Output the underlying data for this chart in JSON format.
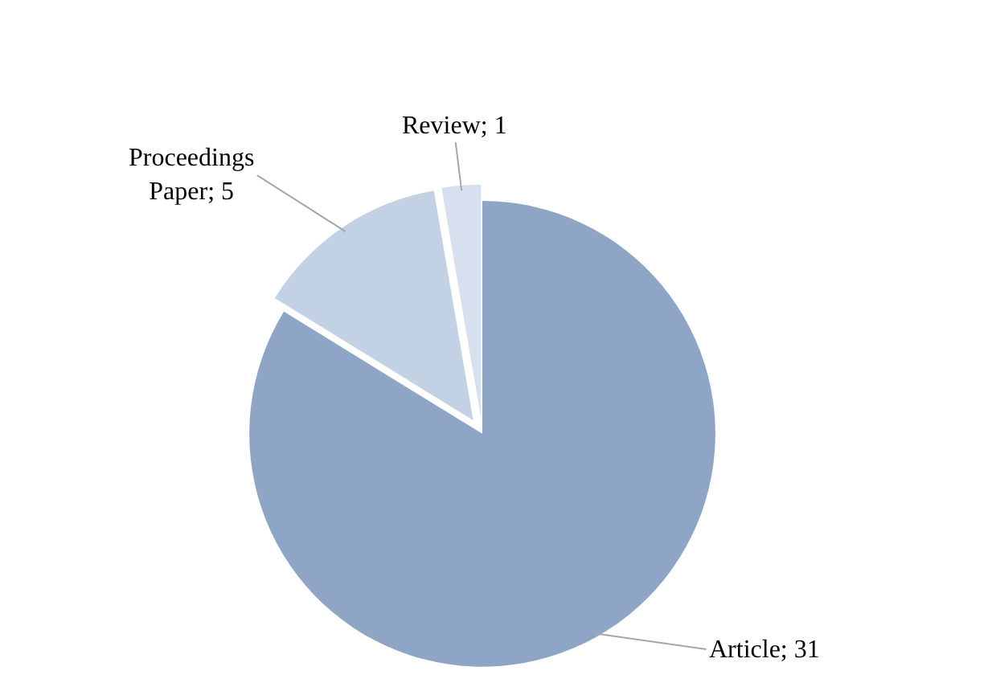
{
  "chart_data": {
    "type": "pie",
    "categories": [
      "Article; 31",
      "Proceedings Paper; 5",
      "Review; 1"
    ],
    "values": [
      31,
      5,
      1
    ],
    "colors": [
      "#8fa5c6",
      "#c3d1e4",
      "#d6e0ee"
    ],
    "legend": false
  }
}
